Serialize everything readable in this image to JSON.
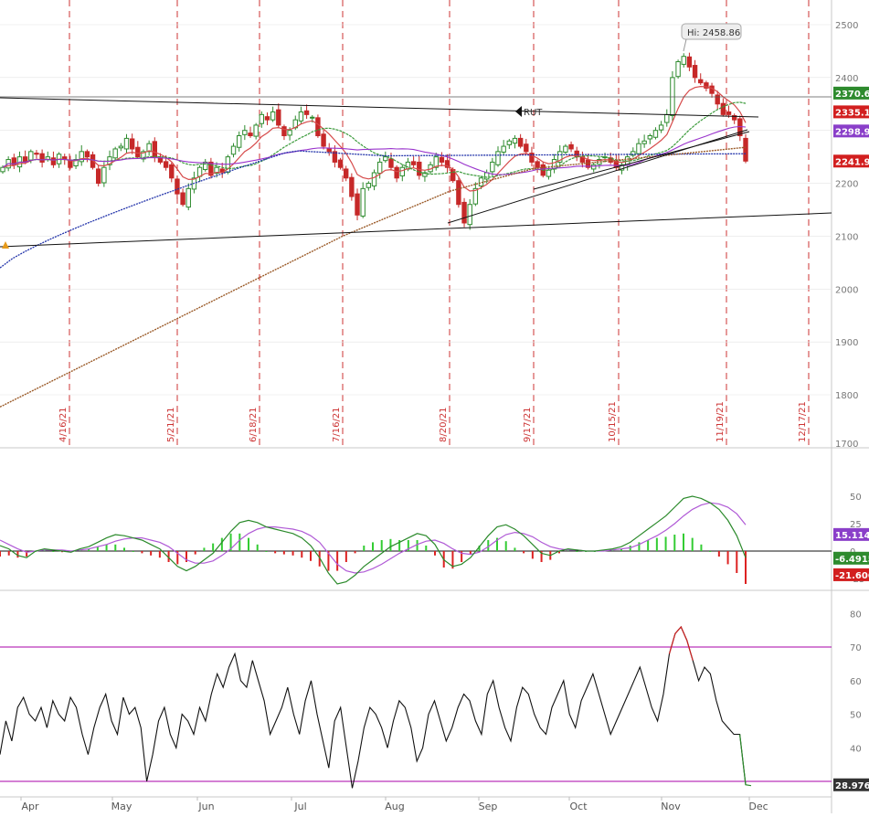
{
  "colors": {
    "background": "#ffffff",
    "grid": "#e3e3e3",
    "candle_up": "#2e8b2e",
    "candle_down": "#c62828",
    "ema_red": "#d64a4a",
    "sma_green": "#3a9a3a",
    "sma_purple": "#9933cc",
    "sma_blue": "#2233aa",
    "sma_brown": "#9a5a28",
    "trendline": "#111111",
    "event_line": "#cc3333",
    "macd_line": "#2b8a2b",
    "macd_signal": "#b05ad6",
    "rsi_line": "#111111",
    "rsi_overbought": "#cc2222",
    "rsi_bands": "#aa00aa",
    "price_label_green": "#2e8b2e",
    "price_label_red": "#d21f1f",
    "price_label_purple": "#8a3fc9",
    "price_label_dark": "#333333"
  },
  "chart_data": [
    {
      "type": "candlestick",
      "symbol_label": "RUT",
      "y_ticks": [
        "2500",
        "2400",
        "2300",
        "2200",
        "2100",
        "2000",
        "1900",
        "1800",
        "1700"
      ],
      "ylim": [
        1700,
        2520
      ],
      "x_ticks": [
        "Apr",
        "May",
        "Jun",
        "Jul",
        "Aug",
        "Sep",
        "Oct",
        "Nov",
        "Dec"
      ],
      "event_dates": [
        "4/16/21",
        "5/21/21",
        "6/18/21",
        "7/16/21",
        "8/20/21",
        "9/17/21",
        "10/15/21",
        "11/19/21",
        "12/17/21"
      ],
      "high_annotation": "Hi: 2458.86",
      "right_labels": [
        {
          "text": "2370.63",
          "value": 2370.63,
          "color": "green"
        },
        {
          "text": "2335.11",
          "value": 2335.11,
          "color": "red"
        },
        {
          "text": "2298.94",
          "value": 2298.94,
          "color": "purple"
        },
        {
          "text": "2241.98",
          "value": 2241.98,
          "color": "red"
        }
      ],
      "close_series_approx": [
        2230,
        2245,
        2235,
        2250,
        2240,
        2260,
        2255,
        2240,
        2250,
        2235,
        2255,
        2245,
        2230,
        2245,
        2260,
        2250,
        2230,
        2200,
        2230,
        2250,
        2265,
        2270,
        2285,
        2265,
        2250,
        2260,
        2275,
        2250,
        2240,
        2230,
        2210,
        2180,
        2160,
        2190,
        2210,
        2230,
        2240,
        2215,
        2230,
        2220,
        2250,
        2270,
        2290,
        2300,
        2290,
        2310,
        2330,
        2320,
        2335,
        2310,
        2290,
        2300,
        2320,
        2335,
        2330,
        2325,
        2290,
        2270,
        2260,
        2240,
        2230,
        2210,
        2175,
        2140,
        2190,
        2200,
        2220,
        2240,
        2250,
        2230,
        2210,
        2230,
        2240,
        2235,
        2215,
        2220,
        2235,
        2250,
        2240,
        2230,
        2205,
        2160,
        2125,
        2160,
        2190,
        2210,
        2220,
        2240,
        2260,
        2270,
        2280,
        2285,
        2270,
        2260,
        2240,
        2230,
        2215,
        2225,
        2245,
        2260,
        2270,
        2265,
        2250,
        2240,
        2230,
        2235,
        2245,
        2250,
        2240,
        2230,
        2235,
        2250,
        2260,
        2275,
        2280,
        2290,
        2300,
        2310,
        2330,
        2400,
        2430,
        2440,
        2420,
        2400,
        2390,
        2380,
        2370,
        2350,
        2330,
        2330,
        2320,
        2290,
        2242
      ],
      "series": [
        {
          "name": "",
          "indicator": "ema_short"
        },
        {
          "name": "",
          "indicator": "sma_50"
        },
        {
          "name": "",
          "indicator": "sma_100"
        },
        {
          "name": "",
          "indicator": "sma_150"
        },
        {
          "name": "",
          "indicator": "sma_200"
        }
      ]
    },
    {
      "type": "line",
      "indicator": "MACD",
      "y_ticks": [
        "50",
        "25",
        "0",
        "-25"
      ],
      "ylim": [
        -30,
        65
      ],
      "right_labels": [
        {
          "text": "15.1145",
          "value": 15.1145,
          "color": "purple"
        },
        {
          "text": "-6.4915",
          "value": -6.4915,
          "color": "green"
        },
        {
          "text": "-21.6063",
          "value": -21.6063,
          "color": "red"
        }
      ],
      "macd_approx": [
        5,
        2,
        -4,
        -6,
        0,
        2,
        1,
        0,
        -1,
        2,
        4,
        8,
        12,
        15,
        14,
        12,
        10,
        6,
        2,
        -6,
        -14,
        -18,
        -14,
        -8,
        -2,
        8,
        18,
        26,
        28,
        26,
        22,
        20,
        18,
        16,
        12,
        5,
        -6,
        -20,
        -30,
        -28,
        -22,
        -14,
        -8,
        -2,
        4,
        8,
        12,
        16,
        14,
        6,
        -8,
        -14,
        -12,
        -6,
        4,
        14,
        22,
        24,
        20,
        14,
        6,
        -2,
        -4,
        0,
        2,
        1,
        0,
        0,
        1,
        2,
        4,
        8,
        14,
        20,
        26,
        32,
        40,
        48,
        50,
        48,
        44,
        38,
        28,
        14,
        -6
      ],
      "signal_approx": [
        10,
        6,
        2,
        -1,
        0,
        1,
        1,
        1,
        0,
        1,
        2,
        4,
        6,
        9,
        11,
        12,
        12,
        10,
        8,
        4,
        -2,
        -8,
        -11,
        -11,
        -9,
        -4,
        2,
        10,
        16,
        20,
        22,
        22,
        21,
        20,
        18,
        14,
        8,
        -2,
        -12,
        -18,
        -20,
        -19,
        -16,
        -12,
        -7,
        -2,
        2,
        6,
        9,
        10,
        7,
        2,
        -2,
        -3,
        -1,
        4,
        10,
        15,
        17,
        16,
        13,
        8,
        4,
        2,
        1,
        1,
        0,
        0,
        0,
        1,
        2,
        3,
        6,
        10,
        14,
        19,
        25,
        32,
        38,
        42,
        44,
        43,
        40,
        34,
        24
      ]
    },
    {
      "type": "line",
      "indicator": "RSI",
      "y_ticks": [
        "80",
        "70",
        "60",
        "50",
        "40",
        "30"
      ],
      "ylim": [
        26,
        82
      ],
      "bands": [
        70,
        30
      ],
      "right_labels": [
        {
          "text": "28.9761",
          "value": 28.9761,
          "color": "dark"
        }
      ],
      "rsi_approx": [
        38,
        48,
        42,
        52,
        55,
        50,
        48,
        52,
        46,
        54,
        50,
        48,
        55,
        52,
        44,
        38,
        46,
        52,
        56,
        48,
        44,
        55,
        50,
        52,
        46,
        30,
        38,
        48,
        52,
        44,
        40,
        50,
        48,
        44,
        52,
        48,
        56,
        62,
        58,
        64,
        68,
        60,
        58,
        66,
        60,
        54,
        44,
        48,
        52,
        58,
        50,
        44,
        54,
        60,
        50,
        42,
        34,
        48,
        52,
        40,
        28,
        36,
        46,
        52,
        50,
        46,
        40,
        48,
        54,
        52,
        46,
        36,
        40,
        50,
        54,
        48,
        42,
        46,
        52,
        56,
        54,
        48,
        44,
        56,
        60,
        52,
        46,
        42,
        52,
        58,
        56,
        50,
        46,
        44,
        52,
        56,
        60,
        50,
        46,
        54,
        58,
        62,
        56,
        50,
        44,
        48,
        52,
        56,
        60,
        64,
        58,
        52,
        48,
        56,
        68,
        74,
        76,
        72,
        66,
        60,
        64,
        62,
        54,
        48,
        46,
        44,
        44,
        29
      ]
    }
  ],
  "x_axis": {
    "labels": [
      "Apr",
      "May",
      "Jun",
      "Jul",
      "Aug",
      "Sep",
      "Oct",
      "Nov",
      "Dec"
    ]
  }
}
